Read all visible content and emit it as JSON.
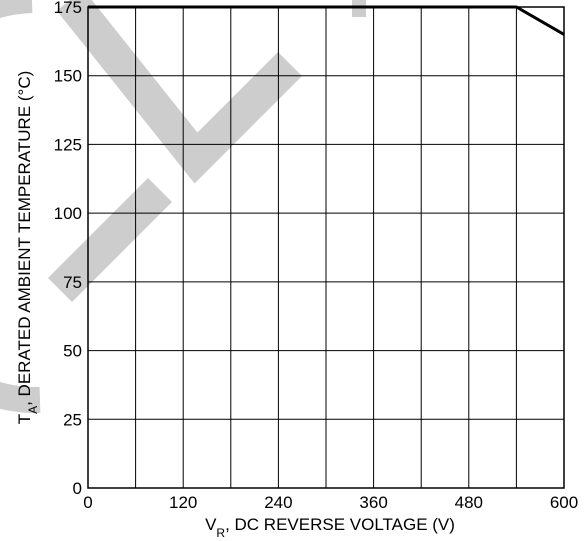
{
  "chart_data": {
    "type": "line",
    "title": "",
    "xlabel": {
      "main": "V",
      "sub": "R",
      "rest": ", DC REVERSE VOLTAGE (V)"
    },
    "ylabel": {
      "main": "T",
      "sub": "A",
      "rest": ", DERATED AMBIENT TEMPERATURE (°C)"
    },
    "xlim": [
      0,
      600
    ],
    "ylim": [
      0,
      175
    ],
    "x_ticks": [
      0,
      120,
      240,
      360,
      480,
      600
    ],
    "y_ticks": [
      0,
      25,
      50,
      75,
      100,
      125,
      150,
      175
    ],
    "x_grid_step": 60,
    "y_grid_step": 25,
    "grid": true,
    "series": [
      {
        "x": [
          0,
          540,
          600
        ],
        "y": [
          175,
          175,
          165
        ]
      }
    ]
  },
  "colors": {
    "line": "#000000",
    "grid": "#000000",
    "watermark": "#c8c8c8"
  }
}
